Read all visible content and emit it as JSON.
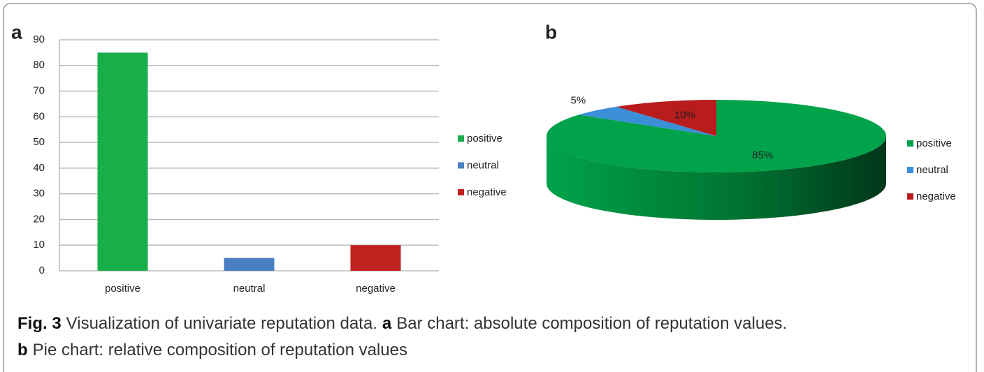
{
  "chart_data": [
    {
      "type": "bar",
      "label": "a",
      "categories": [
        "positive",
        "neutral",
        "negative"
      ],
      "values": [
        85,
        5,
        10
      ],
      "colors": [
        "#1aae4a",
        "#4a7fc1",
        "#c0221f"
      ],
      "ylim": [
        0,
        90
      ],
      "yticks": [
        0,
        10,
        20,
        30,
        40,
        50,
        60,
        70,
        80,
        90
      ],
      "grid": true,
      "legend": "right"
    },
    {
      "type": "pie",
      "label": "b",
      "categories": [
        "positive",
        "neutral",
        "negative"
      ],
      "values": [
        85,
        5,
        10
      ],
      "value_labels": [
        "85%",
        "5%",
        "10%"
      ],
      "colors": [
        "#00a34a",
        "#3a8fd6",
        "#b81c1c"
      ],
      "legend": "right"
    }
  ],
  "caption": {
    "fig": "Fig. 3",
    "intro": "Visualization of univariate reputation data.",
    "items": [
      {
        "label": "a",
        "text": "Bar chart: absolute composition of reputation values."
      },
      {
        "label": "b",
        "text": "Pie chart: relative composition of reputation values"
      }
    ]
  }
}
